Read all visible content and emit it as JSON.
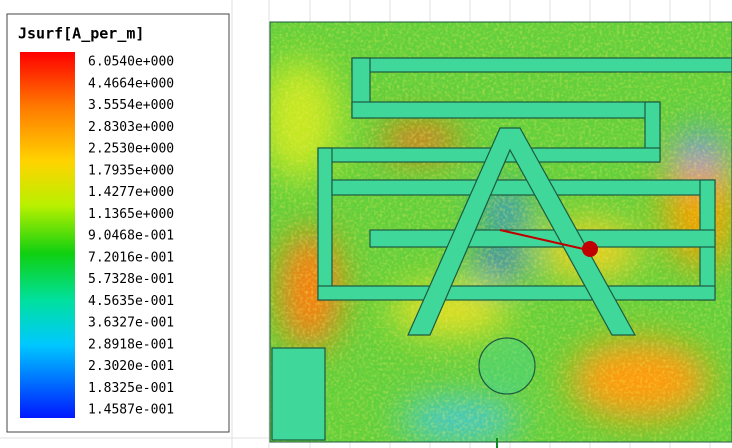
{
  "legend": {
    "title": "Jsurf[A_per_m]",
    "labels": [
      "6.0540e+000",
      "4.4664e+000",
      "3.5554e+000",
      "2.8303e+000",
      "2.2530e+000",
      "1.7935e+000",
      "1.4277e+000",
      "1.1365e+000",
      "9.0468e-001",
      "7.2016e-001",
      "5.7328e-001",
      "4.5635e-001",
      "3.6327e-001",
      "2.8918e-001",
      "2.3020e-001",
      "1.8325e-001",
      "1.4587e-001"
    ]
  }
}
